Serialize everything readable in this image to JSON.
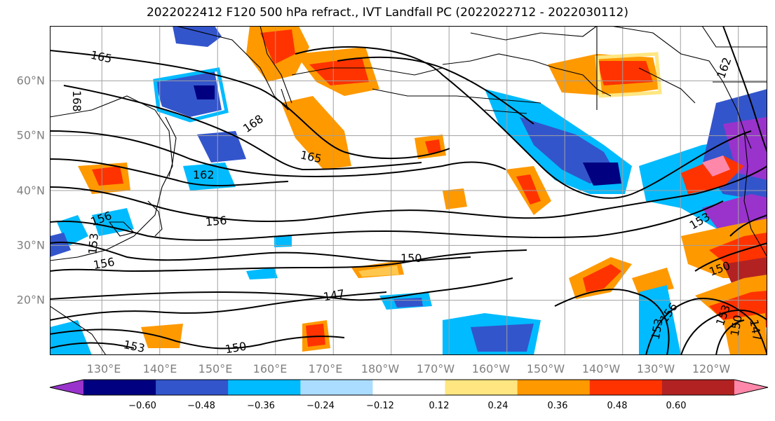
{
  "title": "2022022412 F120 500 hPa refract., IVT Landfall PC (2022022712 - 2022030112)",
  "axes": {
    "lat_labels": [
      "60°N",
      "50°N",
      "40°N",
      "30°N",
      "20°N"
    ],
    "lon_labels": [
      "130°E",
      "140°E",
      "150°E",
      "160°E",
      "170°E",
      "180°W",
      "170°W",
      "160°W",
      "150°W",
      "140°W",
      "130°W",
      "120°W"
    ],
    "lon_range": [
      121,
      245
    ],
    "lat_range": [
      10,
      70
    ]
  },
  "colorbar": {
    "tick_labels": [
      "−0.60",
      "−0.48",
      "−0.36",
      "−0.24",
      "−0.12",
      "0.12",
      "0.24",
      "0.36",
      "0.48",
      "0.60"
    ],
    "bins": [
      {
        "color": "#9933cc",
        "range": "< -0.60"
      },
      {
        "color": "#000080",
        "range": "-0.60 to -0.48"
      },
      {
        "color": "#3355cc",
        "range": "-0.48 to -0.36"
      },
      {
        "color": "#00bbff",
        "range": "-0.36 to -0.24"
      },
      {
        "color": "#aaddff",
        "range": "-0.24 to -0.12"
      },
      {
        "color": "#ffffff",
        "range": "-0.12 to 0.12"
      },
      {
        "color": "#ffe680",
        "range": "0.12 to 0.24"
      },
      {
        "color": "#ff9900",
        "range": "0.24 to 0.36"
      },
      {
        "color": "#ff3300",
        "range": "0.36 to 0.48"
      },
      {
        "color": "#b22222",
        "range": "0.48 to 0.60"
      },
      {
        "color": "#ff88aa",
        "range": "> 0.60"
      }
    ]
  },
  "contour_labels": [
    "165",
    "168",
    "168",
    "165",
    "162",
    "156",
    "156",
    "153",
    "156",
    "150",
    "147",
    "153",
    "150",
    "153",
    "156",
    "150",
    "153",
    "150",
    "147",
    "162",
    "153"
  ],
  "colors": {
    "grid": "#a0a0a0",
    "contour": "#000000",
    "tick_text": "#808080"
  }
}
